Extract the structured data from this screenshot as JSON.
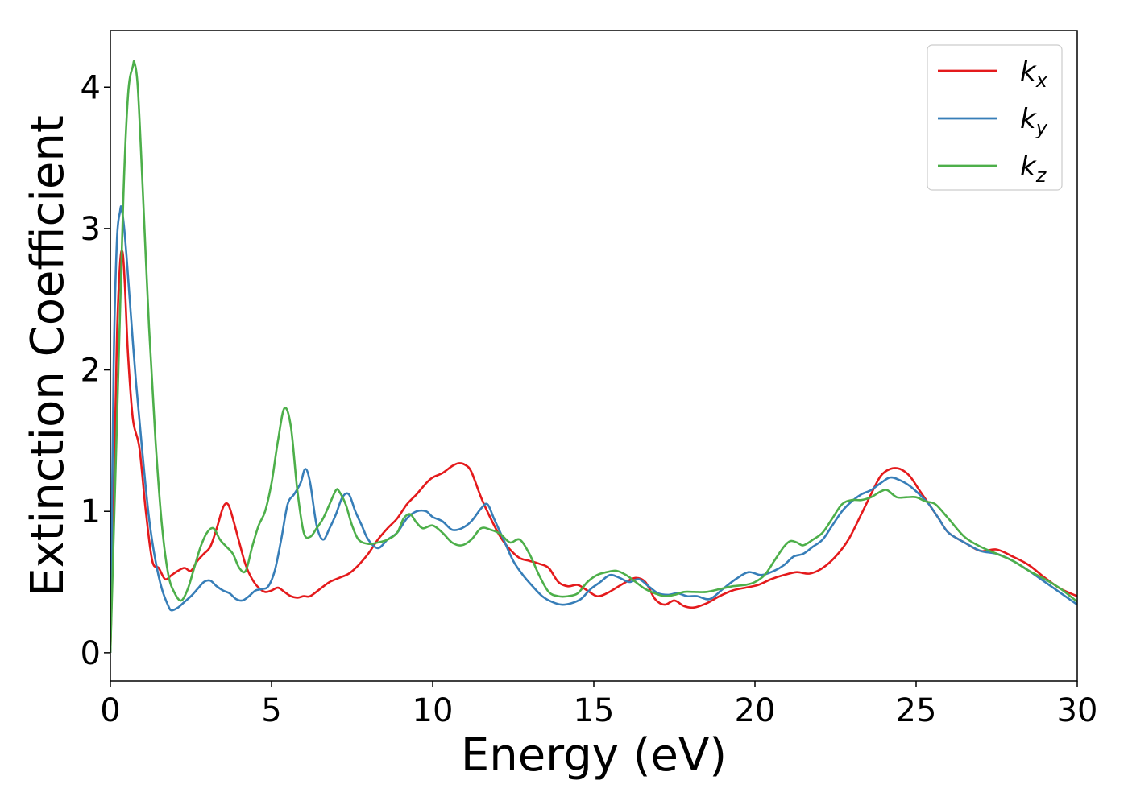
{
  "chart_data": {
    "type": "line",
    "title": "",
    "xlabel": "Energy (eV)",
    "ylabel": "Extinction Coefficient",
    "xlim": [
      0,
      30
    ],
    "ylim": [
      -0.2,
      4.4
    ],
    "xticks": [
      0,
      5,
      10,
      15,
      20,
      25,
      30
    ],
    "yticks": [
      0,
      1,
      2,
      3,
      4
    ],
    "grid": false,
    "legend_position": "top-right",
    "series": [
      {
        "name": "k",
        "subscript": "x",
        "color": "#e41a1c",
        "x": [
          0,
          0.1,
          0.2,
          0.3,
          0.38,
          0.45,
          0.55,
          0.7,
          0.9,
          1.1,
          1.3,
          1.5,
          1.7,
          1.9,
          2.1,
          2.3,
          2.5,
          2.7,
          2.9,
          3.1,
          3.3,
          3.5,
          3.65,
          3.8,
          4.0,
          4.2,
          4.4,
          4.6,
          4.8,
          5.0,
          5.2,
          5.4,
          5.6,
          5.8,
          6.0,
          6.2,
          6.5,
          6.8,
          7.1,
          7.4,
          7.7,
          8.0,
          8.3,
          8.6,
          8.9,
          9.2,
          9.5,
          9.8,
          10.0,
          10.3,
          10.6,
          10.8,
          11.0,
          11.2,
          11.5,
          11.8,
          12.1,
          12.4,
          12.7,
          13.0,
          13.3,
          13.6,
          13.9,
          14.2,
          14.5,
          14.8,
          15.1,
          15.4,
          15.7,
          16.0,
          16.3,
          16.6,
          16.9,
          17.2,
          17.5,
          17.8,
          18.1,
          18.5,
          18.9,
          19.3,
          19.7,
          20.1,
          20.5,
          20.9,
          21.3,
          21.7,
          22.1,
          22.5,
          22.9,
          23.3,
          23.6,
          23.9,
          24.2,
          24.5,
          24.8,
          25.1,
          25.4,
          25.7,
          26.0,
          26.5,
          27.0,
          27.5,
          28.0,
          28.5,
          29.0,
          29.5,
          30.0
        ],
        "y": [
          0.0,
          1.0,
          2.2,
          2.75,
          2.83,
          2.6,
          2.1,
          1.65,
          1.45,
          1.0,
          0.65,
          0.6,
          0.52,
          0.55,
          0.58,
          0.6,
          0.58,
          0.65,
          0.7,
          0.75,
          0.88,
          1.03,
          1.05,
          0.95,
          0.78,
          0.62,
          0.52,
          0.46,
          0.43,
          0.44,
          0.46,
          0.43,
          0.4,
          0.39,
          0.4,
          0.4,
          0.45,
          0.5,
          0.53,
          0.56,
          0.62,
          0.7,
          0.8,
          0.88,
          0.95,
          1.05,
          1.12,
          1.2,
          1.24,
          1.27,
          1.32,
          1.34,
          1.33,
          1.28,
          1.1,
          0.95,
          0.82,
          0.73,
          0.67,
          0.65,
          0.63,
          0.6,
          0.5,
          0.47,
          0.48,
          0.44,
          0.4,
          0.42,
          0.46,
          0.5,
          0.53,
          0.5,
          0.38,
          0.34,
          0.37,
          0.33,
          0.32,
          0.35,
          0.4,
          0.44,
          0.46,
          0.48,
          0.52,
          0.55,
          0.57,
          0.56,
          0.6,
          0.68,
          0.8,
          0.98,
          1.12,
          1.25,
          1.3,
          1.3,
          1.25,
          1.15,
          1.05,
          0.95,
          0.85,
          0.78,
          0.72,
          0.73,
          0.68,
          0.62,
          0.53,
          0.45,
          0.4
        ]
      },
      {
        "name": "k",
        "subscript": "y",
        "color": "#377eb8",
        "x": [
          0,
          0.1,
          0.2,
          0.3,
          0.35,
          0.45,
          0.6,
          0.8,
          1.0,
          1.2,
          1.4,
          1.6,
          1.8,
          1.9,
          2.1,
          2.3,
          2.5,
          2.7,
          2.9,
          3.1,
          3.3,
          3.5,
          3.7,
          3.9,
          4.1,
          4.3,
          4.5,
          4.7,
          4.9,
          5.1,
          5.3,
          5.5,
          5.7,
          5.9,
          6.05,
          6.2,
          6.4,
          6.6,
          6.8,
          7.0,
          7.2,
          7.4,
          7.6,
          7.8,
          8.0,
          8.3,
          8.6,
          8.9,
          9.2,
          9.5,
          9.8,
          10.0,
          10.3,
          10.6,
          10.9,
          11.2,
          11.5,
          11.7,
          11.9,
          12.2,
          12.5,
          12.8,
          13.1,
          13.4,
          13.7,
          14.0,
          14.3,
          14.6,
          14.9,
          15.2,
          15.5,
          15.8,
          16.1,
          16.4,
          16.7,
          17.0,
          17.3,
          17.6,
          17.9,
          18.2,
          18.6,
          19.0,
          19.4,
          19.8,
          20.2,
          20.6,
          20.9,
          21.2,
          21.5,
          21.8,
          22.1,
          22.4,
          22.7,
          23.0,
          23.3,
          23.6,
          23.9,
          24.2,
          24.5,
          24.8,
          25.1,
          25.4,
          25.7,
          26.0,
          26.5,
          27.0,
          27.5,
          28.0,
          28.5,
          29.0,
          29.5,
          30.0
        ],
        "y": [
          0.0,
          2.0,
          2.9,
          3.12,
          3.14,
          2.95,
          2.5,
          1.9,
          1.4,
          0.95,
          0.65,
          0.45,
          0.33,
          0.3,
          0.32,
          0.36,
          0.4,
          0.45,
          0.5,
          0.51,
          0.47,
          0.44,
          0.42,
          0.38,
          0.37,
          0.4,
          0.44,
          0.45,
          0.47,
          0.58,
          0.8,
          1.05,
          1.12,
          1.2,
          1.3,
          1.2,
          0.9,
          0.8,
          0.88,
          0.98,
          1.1,
          1.12,
          1.0,
          0.9,
          0.8,
          0.74,
          0.8,
          0.85,
          0.95,
          1.0,
          1.0,
          0.96,
          0.93,
          0.87,
          0.88,
          0.93,
          1.02,
          1.05,
          0.95,
          0.8,
          0.65,
          0.55,
          0.47,
          0.4,
          0.36,
          0.34,
          0.35,
          0.38,
          0.45,
          0.5,
          0.55,
          0.53,
          0.5,
          0.52,
          0.47,
          0.42,
          0.41,
          0.42,
          0.4,
          0.4,
          0.38,
          0.45,
          0.52,
          0.57,
          0.55,
          0.58,
          0.62,
          0.68,
          0.7,
          0.75,
          0.8,
          0.9,
          1.0,
          1.07,
          1.12,
          1.15,
          1.2,
          1.24,
          1.22,
          1.18,
          1.12,
          1.05,
          0.95,
          0.85,
          0.78,
          0.72,
          0.7,
          0.65,
          0.58,
          0.5,
          0.42,
          0.34
        ]
      },
      {
        "name": "k",
        "subscript": "z",
        "color": "#4daf4a",
        "x": [
          0,
          0.2,
          0.4,
          0.55,
          0.7,
          0.75,
          0.85,
          1.0,
          1.2,
          1.4,
          1.6,
          1.8,
          2.0,
          2.2,
          2.4,
          2.6,
          2.8,
          3.0,
          3.2,
          3.4,
          3.6,
          3.8,
          4.0,
          4.2,
          4.4,
          4.6,
          4.8,
          5.0,
          5.2,
          5.4,
          5.6,
          5.8,
          6.0,
          6.2,
          6.4,
          6.6,
          6.8,
          7.0,
          7.1,
          7.3,
          7.5,
          7.7,
          8.0,
          8.3,
          8.6,
          8.9,
          9.1,
          9.3,
          9.5,
          9.7,
          10.0,
          10.3,
          10.6,
          10.9,
          11.2,
          11.5,
          11.8,
          12.1,
          12.4,
          12.7,
          13.0,
          13.3,
          13.6,
          13.9,
          14.2,
          14.5,
          14.8,
          15.1,
          15.4,
          15.7,
          16.0,
          16.3,
          16.6,
          16.9,
          17.2,
          17.5,
          17.8,
          18.1,
          18.5,
          18.9,
          19.3,
          19.7,
          20.0,
          20.3,
          20.6,
          20.9,
          21.1,
          21.3,
          21.5,
          21.8,
          22.1,
          22.4,
          22.7,
          23.0,
          23.3,
          23.6,
          23.9,
          24.1,
          24.4,
          24.7,
          25.0,
          25.3,
          25.6,
          26.0,
          26.5,
          27.0,
          27.5,
          28.0,
          28.5,
          29.0,
          29.5,
          30.0
        ],
        "y": [
          0.0,
          1.6,
          3.2,
          3.95,
          4.15,
          4.17,
          4.0,
          3.3,
          2.3,
          1.5,
          0.9,
          0.55,
          0.42,
          0.37,
          0.45,
          0.6,
          0.75,
          0.85,
          0.88,
          0.8,
          0.75,
          0.7,
          0.6,
          0.58,
          0.75,
          0.9,
          1.0,
          1.2,
          1.5,
          1.73,
          1.6,
          1.15,
          0.85,
          0.82,
          0.88,
          0.95,
          1.05,
          1.15,
          1.14,
          1.05,
          0.9,
          0.8,
          0.77,
          0.78,
          0.8,
          0.85,
          0.95,
          0.98,
          0.92,
          0.88,
          0.9,
          0.85,
          0.78,
          0.76,
          0.8,
          0.88,
          0.87,
          0.84,
          0.78,
          0.8,
          0.7,
          0.55,
          0.43,
          0.4,
          0.4,
          0.42,
          0.5,
          0.55,
          0.57,
          0.58,
          0.55,
          0.5,
          0.45,
          0.42,
          0.4,
          0.41,
          0.43,
          0.43,
          0.43,
          0.45,
          0.47,
          0.48,
          0.5,
          0.55,
          0.65,
          0.75,
          0.79,
          0.78,
          0.76,
          0.8,
          0.85,
          0.95,
          1.05,
          1.08,
          1.08,
          1.1,
          1.14,
          1.15,
          1.1,
          1.1,
          1.1,
          1.07,
          1.05,
          0.95,
          0.82,
          0.75,
          0.7,
          0.65,
          0.58,
          0.52,
          0.45,
          0.36
        ]
      }
    ]
  }
}
